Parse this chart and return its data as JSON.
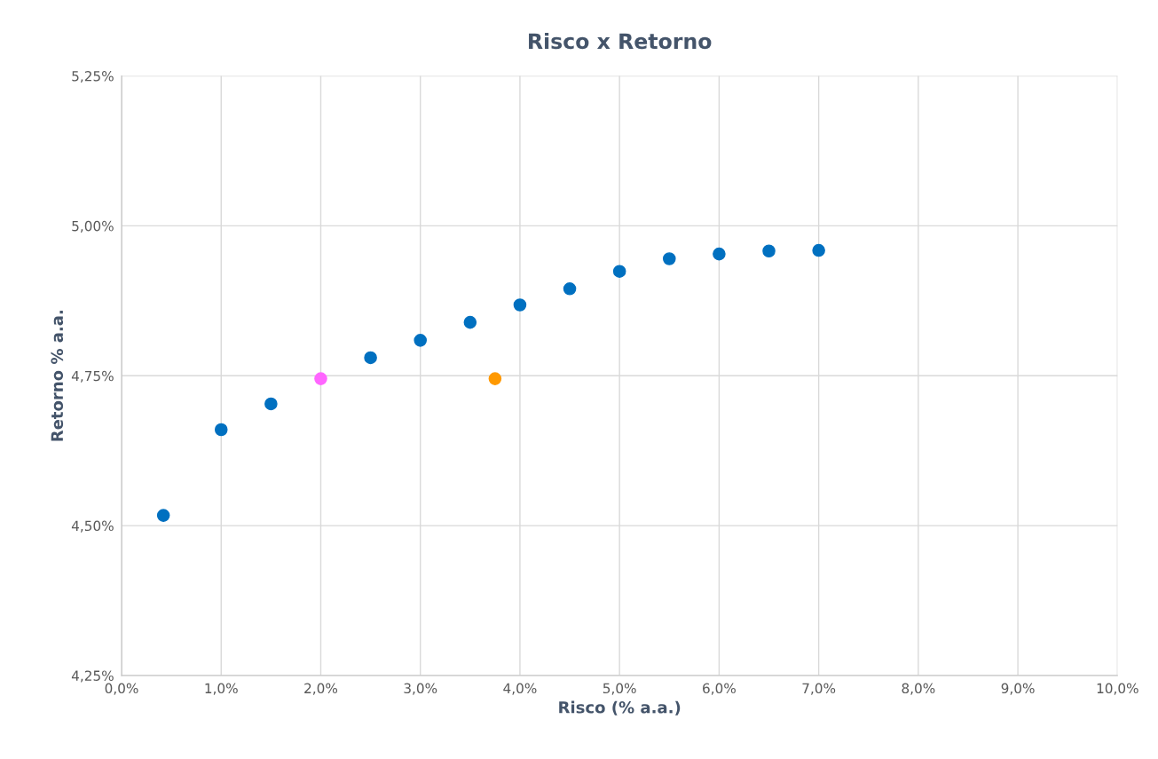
{
  "chart_data": {
    "type": "scatter",
    "title": "Risco x Retorno",
    "xlabel": "Risco (% a.a.)",
    "ylabel": "Retorno % a.a.",
    "series": [
      {
        "color": "#0070c0",
        "x": [
          0.42,
          1.0,
          1.5,
          2.5,
          3.0,
          3.5,
          4.0,
          4.5,
          5.0,
          5.5,
          6.0,
          6.5,
          7.0
        ],
        "values": [
          4.517,
          4.66,
          4.703,
          4.78,
          4.809,
          4.839,
          4.868,
          4.895,
          4.924,
          4.945,
          4.953,
          4.958,
          4.959
        ]
      },
      {
        "color": "#ff66ff",
        "x": [
          2.0
        ],
        "values": [
          4.745
        ]
      },
      {
        "color": "#ff9900",
        "x": [
          3.75
        ],
        "values": [
          4.745
        ]
      }
    ],
    "xlim": [
      0,
      10
    ],
    "ylim": [
      4.25,
      5.25
    ],
    "xticks": [
      {
        "value": 0,
        "label": "0,0%"
      },
      {
        "value": 1,
        "label": "1,0%"
      },
      {
        "value": 2,
        "label": "2,0%"
      },
      {
        "value": 3,
        "label": "3,0%"
      },
      {
        "value": 4,
        "label": "4,0%"
      },
      {
        "value": 5,
        "label": "5,0%"
      },
      {
        "value": 6,
        "label": "6,0%"
      },
      {
        "value": 7,
        "label": "7,0%"
      },
      {
        "value": 8,
        "label": "8,0%"
      },
      {
        "value": 9,
        "label": "9,0%"
      },
      {
        "value": 10,
        "label": "10,0%"
      }
    ],
    "yticks": [
      {
        "value": 4.25,
        "label": "4,25%"
      },
      {
        "value": 4.5,
        "label": "4,50%"
      },
      {
        "value": 4.75,
        "label": "4,75%"
      },
      {
        "value": 5.0,
        "label": "5,00%"
      },
      {
        "value": 5.25,
        "label": "5,25%"
      }
    ],
    "grid": true,
    "marker": "circle"
  }
}
